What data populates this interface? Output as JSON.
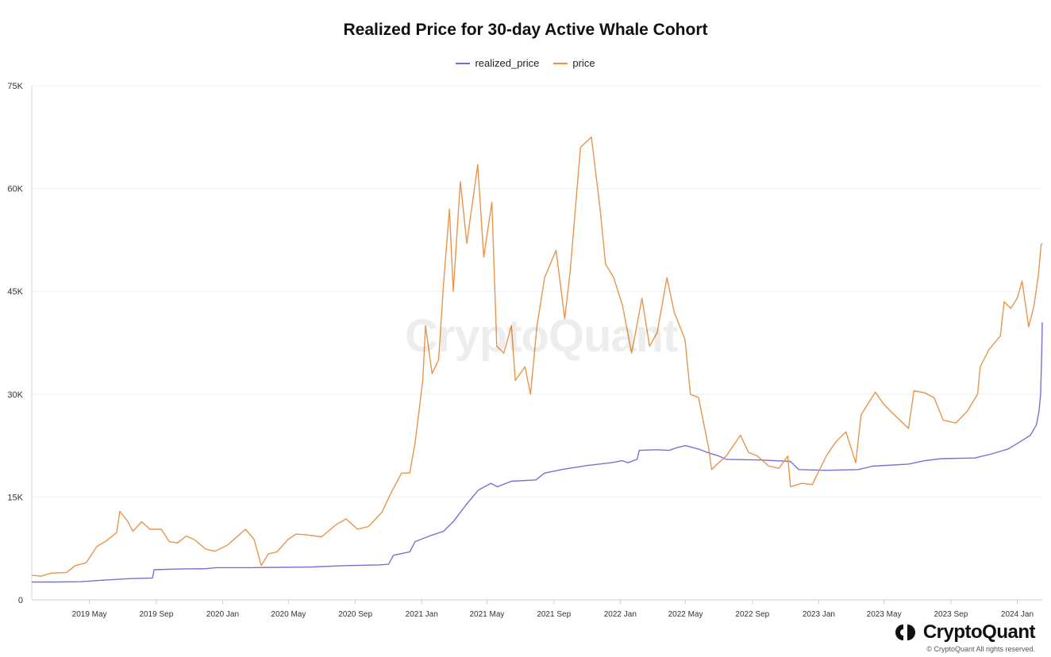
{
  "chart_data": {
    "type": "line",
    "title": "Realized Price for 30-day Active Whale Cohort",
    "xlabel": "",
    "ylabel": "",
    "x_range": [
      "2019-01-15",
      "2024-02-16"
    ],
    "ylim": [
      0,
      75000
    ],
    "y_ticks": [
      0,
      15000,
      30000,
      45000,
      60000,
      75000
    ],
    "y_tick_labels": [
      "0",
      "15K",
      "30K",
      "45K",
      "60K",
      "75K"
    ],
    "x_ticks": [
      "2019-05-01",
      "2019-09-01",
      "2020-01-01",
      "2020-05-01",
      "2020-09-01",
      "2021-01-01",
      "2021-05-01",
      "2021-09-01",
      "2022-01-01",
      "2022-05-01",
      "2022-09-01",
      "2023-01-01",
      "2023-05-01",
      "2023-09-01",
      "2024-01-01"
    ],
    "x_tick_labels": [
      "2019 May",
      "2019 Sep",
      "2020 Jan",
      "2020 May",
      "2020 Sep",
      "2021 Jan",
      "2021 May",
      "2021 Sep",
      "2022 Jan",
      "2022 May",
      "2022 Sep",
      "2023 Jan",
      "2023 May",
      "2023 Sep",
      "2024 Jan"
    ],
    "grid": true,
    "legend_position": "top-center",
    "series": [
      {
        "name": "realized_price",
        "color": "#7b6fd6",
        "points": [
          [
            "2019-01-15",
            2600
          ],
          [
            "2019-03-01",
            2600
          ],
          [
            "2019-04-15",
            2650
          ],
          [
            "2019-06-01",
            2900
          ],
          [
            "2019-07-15",
            3100
          ],
          [
            "2019-08-25",
            3200
          ],
          [
            "2019-08-28",
            4400
          ],
          [
            "2019-10-15",
            4500
          ],
          [
            "2019-12-01",
            4550
          ],
          [
            "2019-12-20",
            4700
          ],
          [
            "2020-02-15",
            4700
          ],
          [
            "2020-04-15",
            4750
          ],
          [
            "2020-06-15",
            4800
          ],
          [
            "2020-08-15",
            5000
          ],
          [
            "2020-10-15",
            5100
          ],
          [
            "2020-11-01",
            5200
          ],
          [
            "2020-11-10",
            6500
          ],
          [
            "2020-12-10",
            7000
          ],
          [
            "2020-12-20",
            8500
          ],
          [
            "2021-01-15",
            9300
          ],
          [
            "2021-02-10",
            10000
          ],
          [
            "2021-03-01",
            11500
          ],
          [
            "2021-03-25",
            14000
          ],
          [
            "2021-04-15",
            16000
          ],
          [
            "2021-05-08",
            17000
          ],
          [
            "2021-05-20",
            16500
          ],
          [
            "2021-06-15",
            17300
          ],
          [
            "2021-07-30",
            17500
          ],
          [
            "2021-08-15",
            18500
          ],
          [
            "2021-09-15",
            19000
          ],
          [
            "2021-11-01",
            19600
          ],
          [
            "2021-12-15",
            20000
          ],
          [
            "2022-01-05",
            20300
          ],
          [
            "2022-01-15",
            20000
          ],
          [
            "2022-02-01",
            20500
          ],
          [
            "2022-02-05",
            21800
          ],
          [
            "2022-03-10",
            21900
          ],
          [
            "2022-04-01",
            21800
          ],
          [
            "2022-04-15",
            22200
          ],
          [
            "2022-05-01",
            22500
          ],
          [
            "2022-05-25",
            22000
          ],
          [
            "2022-06-10",
            21500
          ],
          [
            "2022-07-01",
            21000
          ],
          [
            "2022-07-15",
            20500
          ],
          [
            "2022-09-15",
            20400
          ],
          [
            "2022-11-10",
            20200
          ],
          [
            "2022-11-25",
            19000
          ],
          [
            "2023-01-15",
            18900
          ],
          [
            "2023-03-15",
            19000
          ],
          [
            "2023-04-10",
            19500
          ],
          [
            "2023-06-15",
            19800
          ],
          [
            "2023-07-15",
            20300
          ],
          [
            "2023-08-15",
            20600
          ],
          [
            "2023-10-15",
            20700
          ],
          [
            "2023-11-15",
            21300
          ],
          [
            "2023-12-15",
            22000
          ],
          [
            "2024-01-05",
            23000
          ],
          [
            "2024-01-25",
            24000
          ],
          [
            "2024-02-05",
            25500
          ],
          [
            "2024-02-10",
            27500
          ],
          [
            "2024-02-13",
            30000
          ],
          [
            "2024-02-15",
            36000
          ],
          [
            "2024-02-16",
            40500
          ]
        ]
      },
      {
        "name": "price",
        "color": "#e8954b",
        "points": [
          [
            "2019-01-15",
            3600
          ],
          [
            "2019-02-01",
            3450
          ],
          [
            "2019-02-20",
            3900
          ],
          [
            "2019-03-20",
            4000
          ],
          [
            "2019-04-05",
            5000
          ],
          [
            "2019-04-25",
            5400
          ],
          [
            "2019-05-15",
            7800
          ],
          [
            "2019-06-01",
            8600
          ],
          [
            "2019-06-20",
            9800
          ],
          [
            "2019-06-26",
            12900
          ],
          [
            "2019-07-10",
            11500
          ],
          [
            "2019-07-20",
            10000
          ],
          [
            "2019-08-05",
            11400
          ],
          [
            "2019-08-20",
            10300
          ],
          [
            "2019-09-10",
            10300
          ],
          [
            "2019-09-25",
            8500
          ],
          [
            "2019-10-10",
            8300
          ],
          [
            "2019-10-26",
            9300
          ],
          [
            "2019-11-10",
            8800
          ],
          [
            "2019-12-01",
            7400
          ],
          [
            "2019-12-18",
            7100
          ],
          [
            "2020-01-10",
            8000
          ],
          [
            "2020-01-20",
            8700
          ],
          [
            "2020-02-12",
            10300
          ],
          [
            "2020-02-28",
            8800
          ],
          [
            "2020-03-12",
            5000
          ],
          [
            "2020-03-25",
            6700
          ],
          [
            "2020-04-10",
            7000
          ],
          [
            "2020-04-30",
            8800
          ],
          [
            "2020-05-15",
            9600
          ],
          [
            "2020-06-01",
            9500
          ],
          [
            "2020-07-01",
            9200
          ],
          [
            "2020-07-28",
            11000
          ],
          [
            "2020-08-15",
            11800
          ],
          [
            "2020-09-05",
            10300
          ],
          [
            "2020-09-25",
            10700
          ],
          [
            "2020-10-20",
            12800
          ],
          [
            "2020-11-05",
            15500
          ],
          [
            "2020-11-25",
            18500
          ],
          [
            "2020-12-10",
            18500
          ],
          [
            "2020-12-20",
            23000
          ],
          [
            "2021-01-03",
            32000
          ],
          [
            "2021-01-08",
            40000
          ],
          [
            "2021-01-20",
            33000
          ],
          [
            "2021-02-01",
            35000
          ],
          [
            "2021-02-10",
            46000
          ],
          [
            "2021-02-21",
            57000
          ],
          [
            "2021-02-28",
            45000
          ],
          [
            "2021-03-13",
            61000
          ],
          [
            "2021-03-25",
            52000
          ],
          [
            "2021-04-14",
            63500
          ],
          [
            "2021-04-25",
            50000
          ],
          [
            "2021-05-10",
            58000
          ],
          [
            "2021-05-19",
            37000
          ],
          [
            "2021-06-01",
            36000
          ],
          [
            "2021-06-15",
            40000
          ],
          [
            "2021-06-22",
            32000
          ],
          [
            "2021-07-10",
            34000
          ],
          [
            "2021-07-20",
            30000
          ],
          [
            "2021-08-01",
            40000
          ],
          [
            "2021-08-15",
            47000
          ],
          [
            "2021-09-05",
            51000
          ],
          [
            "2021-09-21",
            41000
          ],
          [
            "2021-10-01",
            48000
          ],
          [
            "2021-10-20",
            66000
          ],
          [
            "2021-11-09",
            67500
          ],
          [
            "2021-11-25",
            57000
          ],
          [
            "2021-12-05",
            49000
          ],
          [
            "2021-12-20",
            47000
          ],
          [
            "2022-01-05",
            43000
          ],
          [
            "2022-01-22",
            36000
          ],
          [
            "2022-02-10",
            44000
          ],
          [
            "2022-02-24",
            37000
          ],
          [
            "2022-03-10",
            39000
          ],
          [
            "2022-03-28",
            47000
          ],
          [
            "2022-04-10",
            42000
          ],
          [
            "2022-04-30",
            38000
          ],
          [
            "2022-05-10",
            30000
          ],
          [
            "2022-05-25",
            29500
          ],
          [
            "2022-06-13",
            22000
          ],
          [
            "2022-06-18",
            19000
          ],
          [
            "2022-07-01",
            20000
          ],
          [
            "2022-07-15",
            21000
          ],
          [
            "2022-08-10",
            24000
          ],
          [
            "2022-08-25",
            21500
          ],
          [
            "2022-09-10",
            21000
          ],
          [
            "2022-10-01",
            19500
          ],
          [
            "2022-10-20",
            19200
          ],
          [
            "2022-11-05",
            21000
          ],
          [
            "2022-11-10",
            16500
          ],
          [
            "2022-12-01",
            17000
          ],
          [
            "2022-12-20",
            16800
          ],
          [
            "2023-01-15",
            21000
          ],
          [
            "2023-02-01",
            23000
          ],
          [
            "2023-02-20",
            24500
          ],
          [
            "2023-03-10",
            20000
          ],
          [
            "2023-03-20",
            27000
          ],
          [
            "2023-04-15",
            30300
          ],
          [
            "2023-05-01",
            28500
          ],
          [
            "2023-05-20",
            27000
          ],
          [
            "2023-06-15",
            25000
          ],
          [
            "2023-06-25",
            30500
          ],
          [
            "2023-07-15",
            30200
          ],
          [
            "2023-08-01",
            29500
          ],
          [
            "2023-08-18",
            26200
          ],
          [
            "2023-09-10",
            25800
          ],
          [
            "2023-10-01",
            27500
          ],
          [
            "2023-10-20",
            30000
          ],
          [
            "2023-10-25",
            34000
          ],
          [
            "2023-11-10",
            36500
          ],
          [
            "2023-12-01",
            38500
          ],
          [
            "2023-12-08",
            43500
          ],
          [
            "2023-12-20",
            42500
          ],
          [
            "2024-01-01",
            44000
          ],
          [
            "2024-01-10",
            46500
          ],
          [
            "2024-01-22",
            39800
          ],
          [
            "2024-02-01",
            43000
          ],
          [
            "2024-02-09",
            47500
          ],
          [
            "2024-02-14",
            51800
          ],
          [
            "2024-02-16",
            52000
          ]
        ]
      }
    ]
  },
  "watermark": "CryptoQuant",
  "brand": {
    "name": "CryptoQuant",
    "copyright": "© CryptoQuant All rights reserved."
  }
}
